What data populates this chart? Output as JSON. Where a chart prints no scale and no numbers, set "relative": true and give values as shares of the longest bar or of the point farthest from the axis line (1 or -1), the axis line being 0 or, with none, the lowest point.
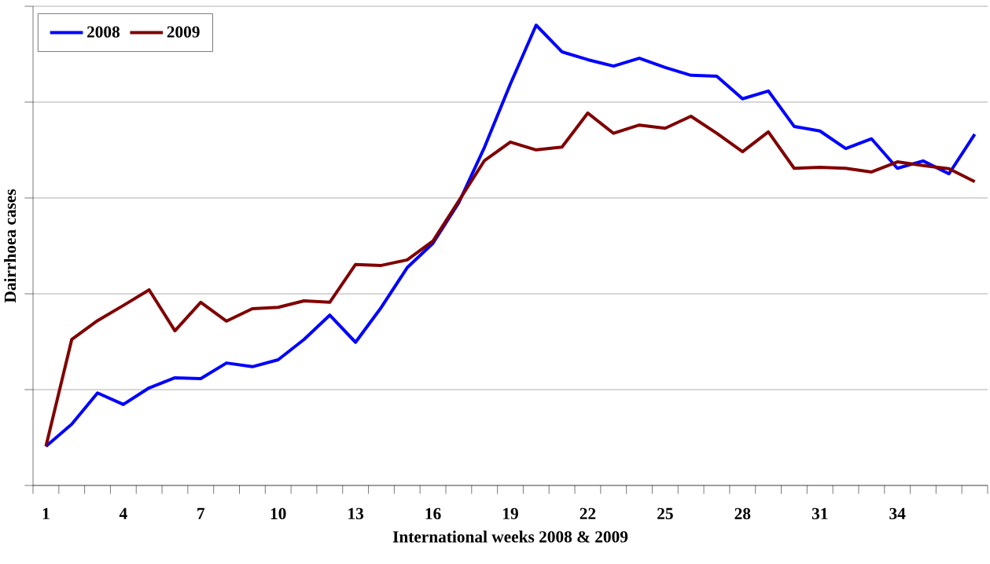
{
  "chart_data": {
    "type": "line",
    "xlabel": "International weeks 2008 & 2009",
    "ylabel": "Dairrhoea cases",
    "relative": true,
    "categories": [
      "1",
      null,
      null,
      "4",
      null,
      null,
      "7",
      null,
      null,
      "10",
      null,
      null,
      "13",
      null,
      null,
      "16",
      null,
      null,
      "19",
      null,
      null,
      "22",
      null,
      null,
      "25",
      null,
      null,
      "28",
      null,
      null,
      "31",
      null,
      null,
      "34",
      null,
      null,
      null
    ],
    "series": [
      {
        "name": "2008",
        "color": "#0000ff",
        "values": [
          0.085,
          0.133,
          0.201,
          0.176,
          0.212,
          0.234,
          0.232,
          0.266,
          0.258,
          0.273,
          0.317,
          0.37,
          0.311,
          0.387,
          0.473,
          0.526,
          0.614,
          0.735,
          0.872,
          1,
          0.942,
          0.925,
          0.911,
          0.928,
          0.908,
          0.891,
          0.889,
          0.84,
          0.857,
          0.78,
          0.77,
          0.732,
          0.753,
          0.689,
          0.705,
          0.677,
          0.763
        ]
      },
      {
        "name": "2009",
        "color": "#800000",
        "values": [
          0.085,
          0.317,
          0.358,
          0.391,
          0.425,
          0.336,
          0.398,
          0.357,
          0.384,
          0.387,
          0.401,
          0.398,
          0.48,
          0.478,
          0.49,
          0.531,
          0.618,
          0.706,
          0.746,
          0.729,
          0.735,
          0.809,
          0.765,
          0.783,
          0.776,
          0.802,
          0.765,
          0.725,
          0.768,
          0.689,
          0.691,
          0.689,
          0.681,
          0.703,
          0.695,
          0.688,
          0.66
        ]
      }
    ],
    "grid": "y",
    "legend": "top left"
  }
}
